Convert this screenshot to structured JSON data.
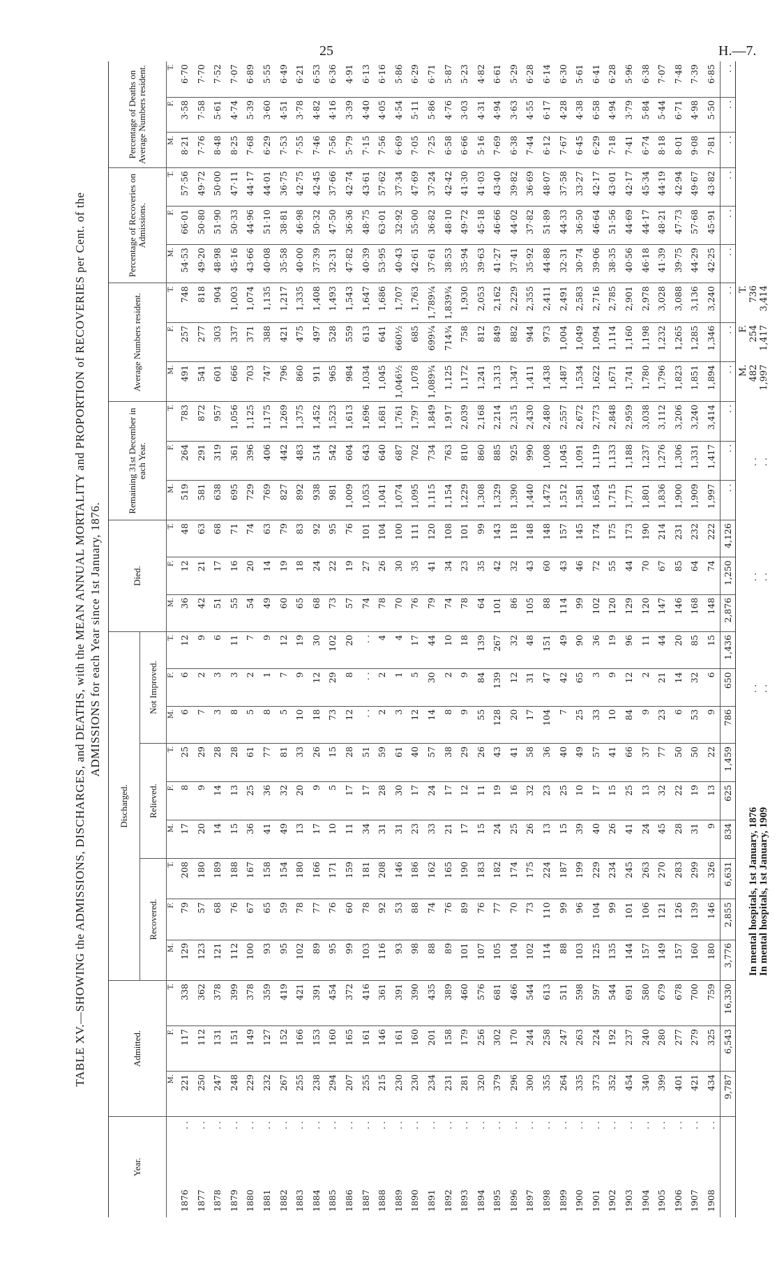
{
  "page": {
    "number": "25",
    "reference": "H.—7."
  },
  "title": {
    "line1": "TABLE XV.—SHOWING the ADMISSIONS, DISCHARGES, and DEATHS, with the MEAN ANNUAL MORTALITY and PROPORTION of RECOVERIES per Cent. of the",
    "line2": "ADMISSIONS for each Year since 1st January, 1876."
  },
  "headers": {
    "year": "Year.",
    "admitted": "Admitted.",
    "discharged": "Discharged.",
    "recovered": "Recovered.",
    "relieved": "Relieved.",
    "not_improved": "Not Improved.",
    "died": "Died.",
    "remaining": "Remaining 31st December in each Year.",
    "average": "Average Numbers resident.",
    "pct_recoveries": "Percentage of Recoveries on Admissions.",
    "pct_deaths": "Percentage of Deaths on Average Numbers resident.",
    "sub": [
      "M.",
      "F.",
      "T."
    ],
    "leader": ". ."
  },
  "table": {
    "rows": [
      [
        "1876",
        "221",
        "117",
        "338",
        "129",
        "79",
        "208",
        "17",
        "8",
        "25",
        "6",
        "6",
        "12",
        "36",
        "12",
        "48",
        "519",
        "264",
        "783",
        "491",
        "257",
        "748",
        "54·53",
        "66·01",
        "57·56",
        "8·21",
        "3·58",
        "6·70"
      ],
      [
        "1877",
        "250",
        "112",
        "362",
        "123",
        "57",
        "180",
        "20",
        "9",
        "29",
        "7",
        "2",
        "9",
        "42",
        "21",
        "63",
        "581",
        "291",
        "872",
        "541",
        "277",
        "818",
        "49·20",
        "50·80",
        "49·72",
        "7·76",
        "7·58",
        "7·70"
      ],
      [
        "1878",
        "247",
        "131",
        "378",
        "121",
        "68",
        "189",
        "14",
        "14",
        "28",
        "3",
        "3",
        "6",
        "51",
        "17",
        "68",
        "638",
        "319",
        "957",
        "601",
        "303",
        "904",
        "48·98",
        "51·90",
        "50·00",
        "8·48",
        "5·61",
        "7·52"
      ],
      [
        "1879",
        "248",
        "151",
        "399",
        "112",
        "76",
        "188",
        "15",
        "13",
        "28",
        "8",
        "3",
        "11",
        "55",
        "16",
        "71",
        "695",
        "361",
        "1,056",
        "666",
        "337",
        "1,003",
        "45·16",
        "50·33",
        "47·11",
        "8·25",
        "4·74",
        "7·07"
      ],
      [
        "1880",
        "229",
        "149",
        "378",
        "100",
        "67",
        "167",
        "36",
        "25",
        "61",
        "5",
        "2",
        "7",
        "54",
        "20",
        "74",
        "729",
        "396",
        "1,125",
        "703",
        "371",
        "1,074",
        "43·66",
        "44·96",
        "44·17",
        "7·68",
        "5·39",
        "6·89"
      ],
      [
        "1881",
        "232",
        "127",
        "359",
        "93",
        "65",
        "158",
        "41",
        "36",
        "77",
        "8",
        "1",
        "9",
        "49",
        "14",
        "63",
        "769",
        "406",
        "1,175",
        "747",
        "388",
        "1,135",
        "40·08",
        "51·10",
        "44·01",
        "6·29",
        "3·60",
        "5·55"
      ],
      [
        "1882",
        "267",
        "152",
        "419",
        "95",
        "59",
        "154",
        "49",
        "32",
        "81",
        "5",
        "7",
        "12",
        "60",
        "19",
        "79",
        "827",
        "442",
        "1,269",
        "796",
        "421",
        "1,217",
        "35·58",
        "38·81",
        "36·75",
        "7·53",
        "4·51",
        "6·49"
      ],
      [
        "1883",
        "255",
        "166",
        "421",
        "102",
        "78",
        "180",
        "13",
        "20",
        "33",
        "10",
        "9",
        "19",
        "65",
        "18",
        "83",
        "892",
        "483",
        "1,375",
        "860",
        "475",
        "1,335",
        "40·00",
        "46·98",
        "42·75",
        "7·55",
        "3·78",
        "6·21"
      ],
      [
        "1884",
        "238",
        "153",
        "391",
        "89",
        "77",
        "166",
        "17",
        "9",
        "26",
        "18",
        "12",
        "30",
        "68",
        "24",
        "92",
        "938",
        "514",
        "1,452",
        "911",
        "497",
        "1,408",
        "37·39",
        "50·32",
        "42·45",
        "7·46",
        "4·82",
        "6·53"
      ],
      [
        "1885",
        "294",
        "160",
        "454",
        "95",
        "76",
        "171",
        "10",
        "5",
        "15",
        "73",
        "29",
        "102",
        "73",
        "22",
        "95",
        "981",
        "542",
        "1,523",
        "965",
        "528",
        "1,493",
        "32·31",
        "47·50",
        "37·66",
        "7·56",
        "4·16",
        "6·36"
      ],
      [
        "1886",
        "207",
        "165",
        "372",
        "99",
        "60",
        "159",
        "11",
        "17",
        "28",
        "12",
        "8",
        "20",
        "57",
        "19",
        "76",
        "1,009",
        "604",
        "1,613",
        "984",
        "559",
        "1,543",
        "47·82",
        "36·36",
        "42·74",
        "5·79",
        "3·39",
        "4·91"
      ],
      [
        "1887",
        "255",
        "161",
        "416",
        "103",
        "78",
        "181",
        "34",
        "17",
        "51",
        ". .",
        ". .",
        ". .",
        "74",
        "27",
        "101",
        "1,053",
        "643",
        "1,696",
        "1,034",
        "613",
        "1,647",
        "40·39",
        "48·75",
        "43·61",
        "7·15",
        "4·40",
        "6·13"
      ],
      [
        "1888",
        "215",
        "146",
        "361",
        "116",
        "92",
        "208",
        "31",
        "28",
        "59",
        "2",
        "2",
        "4",
        "78",
        "26",
        "104",
        "1,041",
        "640",
        "1,681",
        "1,045",
        "641",
        "1,686",
        "53·95",
        "63·01",
        "57·62",
        "7·56",
        "4·05",
        "6·16"
      ],
      [
        "1889",
        "230",
        "161",
        "391",
        "93",
        "53",
        "146",
        "31",
        "30",
        "61",
        "3",
        "1",
        "4",
        "70",
        "30",
        "100",
        "1,074",
        "687",
        "1,761",
        "1,046½",
        "660½",
        "1,707",
        "40·43",
        "32·92",
        "37·34",
        "6·69",
        "4·54",
        "5·86"
      ],
      [
        "1890",
        "230",
        "160",
        "390",
        "98",
        "88",
        "186",
        "23",
        "17",
        "40",
        "12",
        "5",
        "17",
        "76",
        "35",
        "111",
        "1,095",
        "702",
        "1,797",
        "1,078",
        "685",
        "1,763",
        "42·61",
        "55·00",
        "47·69",
        "7·05",
        "5·11",
        "6·29"
      ],
      [
        "1891",
        "234",
        "201",
        "435",
        "88",
        "74",
        "162",
        "33",
        "24",
        "57",
        "14",
        "30",
        "44",
        "79",
        "41",
        "120",
        "1,115",
        "734",
        "1,849",
        "1,089¾",
        "699¼",
        "1,789¼",
        "37·61",
        "36·82",
        "37·24",
        "7·25",
        "5·86",
        "6·71"
      ],
      [
        "1892",
        "231",
        "158",
        "389",
        "89",
        "76",
        "165",
        "21",
        "17",
        "38",
        "8",
        "2",
        "10",
        "74",
        "34",
        "108",
        "1,154",
        "763",
        "1,917",
        "1,125",
        "714¾",
        "1,839¾",
        "38·53",
        "48·10",
        "42·42",
        "6·58",
        "4·76",
        "5·87"
      ],
      [
        "1893",
        "281",
        "179",
        "460",
        "101",
        "89",
        "190",
        "17",
        "12",
        "29",
        "9",
        "9",
        "18",
        "78",
        "23",
        "101",
        "1,229",
        "810",
        "2,039",
        "1,172",
        "758",
        "1,930",
        "35·94",
        "49·72",
        "41·30",
        "6·66",
        "3·03",
        "5·23"
      ],
      [
        "1894",
        "320",
        "256",
        "576",
        "107",
        "76",
        "183",
        "15",
        "11",
        "26",
        "55",
        "84",
        "139",
        "64",
        "35",
        "99",
        "1,308",
        "860",
        "2,168",
        "1,241",
        "812",
        "2,053",
        "39·63",
        "45·18",
        "41·03",
        "5·16",
        "4·31",
        "4·82"
      ],
      [
        "1895",
        "379",
        "302",
        "681",
        "105",
        "77",
        "182",
        "24",
        "19",
        "43",
        "128",
        "139",
        "267",
        "101",
        "42",
        "143",
        "1,329",
        "885",
        "2,214",
        "1,313",
        "849",
        "2,162",
        "41·27",
        "46·66",
        "43·40",
        "7·69",
        "4·94",
        "6·61"
      ],
      [
        "1896",
        "296",
        "170",
        "466",
        "104",
        "70",
        "174",
        "25",
        "16",
        "41",
        "20",
        "12",
        "32",
        "86",
        "32",
        "118",
        "1,390",
        "925",
        "2,315",
        "1,347",
        "882",
        "2,229",
        "37·41",
        "44·02",
        "39·82",
        "6·38",
        "3·63",
        "5·29"
      ],
      [
        "1897",
        "300",
        "244",
        "544",
        "102",
        "73",
        "175",
        "26",
        "32",
        "58",
        "17",
        "31",
        "48",
        "105",
        "43",
        "148",
        "1,440",
        "990",
        "2,430",
        "1,411",
        "944",
        "2,355",
        "35·92",
        "37·82",
        "36·69",
        "7·44",
        "4·55",
        "6·28"
      ],
      [
        "1898",
        "355",
        "258",
        "613",
        "114",
        "110",
        "224",
        "13",
        "23",
        "36",
        "104",
        "47",
        "151",
        "88",
        "60",
        "148",
        "1,472",
        "1,008",
        "2,480",
        "1,438",
        "973",
        "2,411",
        "44·88",
        "51·89",
        "48·07",
        "6·12",
        "6·17",
        "6·14"
      ],
      [
        "1899",
        "264",
        "247",
        "511",
        "88",
        "99",
        "187",
        "15",
        "25",
        "40",
        "7",
        "42",
        "49",
        "114",
        "43",
        "157",
        "1,512",
        "1,045",
        "2,557",
        "1,487",
        "1,004",
        "2,491",
        "32·31",
        "44·33",
        "37·58",
        "7·67",
        "4·28",
        "6·30"
      ],
      [
        "1900",
        "335",
        "263",
        "598",
        "103",
        "96",
        "199",
        "39",
        "10",
        "49",
        "25",
        "65",
        "90",
        "99",
        "46",
        "145",
        "1,581",
        "1,091",
        "2,672",
        "1,534",
        "1,049",
        "2,583",
        "30·74",
        "36·50",
        "33·27",
        "6·45",
        "4·38",
        "5·61"
      ],
      [
        "1901",
        "373",
        "224",
        "597",
        "125",
        "104",
        "229",
        "40",
        "17",
        "57",
        "33",
        "3",
        "36",
        "102",
        "72",
        "174",
        "1,654",
        "1,119",
        "2,773",
        "1,622",
        "1,094",
        "2,716",
        "39·06",
        "46·64",
        "42·17",
        "6·29",
        "6·58",
        "6·41"
      ],
      [
        "1902",
        "352",
        "192",
        "544",
        "135",
        "99",
        "234",
        "26",
        "15",
        "41",
        "10",
        "9",
        "19",
        "120",
        "55",
        "175",
        "1,715",
        "1,133",
        "2,848",
        "1,671",
        "1,114",
        "2,785",
        "38·35",
        "51·56",
        "43·01",
        "7·18",
        "4·94",
        "6·28"
      ],
      [
        "1903",
        "454",
        "237",
        "691",
        "144",
        "101",
        "245",
        "41",
        "25",
        "66",
        "84",
        "12",
        "96",
        "129",
        "44",
        "173",
        "1,771",
        "1,188",
        "2,959",
        "1,741",
        "1,160",
        "2,901",
        "40·56",
        "44·69",
        "42·17",
        "7·41",
        "3·79",
        "5·96"
      ],
      [
        "1904",
        "340",
        "240",
        "580",
        "157",
        "106",
        "263",
        "24",
        "13",
        "37",
        "9",
        "2",
        "11",
        "120",
        "70",
        "190",
        "1,801",
        "1,237",
        "3,038",
        "1,780",
        "1,198",
        "2,978",
        "46·18",
        "44·17",
        "45·34",
        "6·74",
        "5·84",
        "6·38"
      ],
      [
        "1905",
        "399",
        "280",
        "679",
        "149",
        "121",
        "270",
        "45",
        "32",
        "77",
        "23",
        "21",
        "44",
        "147",
        "67",
        "214",
        "1,836",
        "1,276",
        "3,112",
        "1,796",
        "1,232",
        "3,028",
        "41·39",
        "48·21",
        "44·19",
        "8·18",
        "5·44",
        "7·07"
      ],
      [
        "1906",
        "401",
        "277",
        "678",
        "157",
        "126",
        "283",
        "28",
        "22",
        "50",
        "6",
        "14",
        "20",
        "146",
        "85",
        "231",
        "1,900",
        "1,306",
        "3,206",
        "1,823",
        "1,265",
        "3,088",
        "39·75",
        "47·73",
        "42·94",
        "8·01",
        "6·71",
        "7·48"
      ],
      [
        "1907",
        "421",
        "279",
        "700",
        "160",
        "139",
        "299",
        "31",
        "19",
        "50",
        "53",
        "32",
        "85",
        "168",
        "64",
        "232",
        "1,909",
        "1,331",
        "3,240",
        "1,851",
        "1,285",
        "3,136",
        "44·29",
        "57·68",
        "49·67",
        "9·08",
        "4·98",
        "7·39"
      ],
      [
        "1908",
        "434",
        "325",
        "759",
        "180",
        "146",
        "326",
        "9",
        "13",
        "22",
        "9",
        "6",
        "15",
        "148",
        "74",
        "222",
        "1,997",
        "1,417",
        "3,414",
        "1,894",
        "1,346",
        "3,240",
        "42·25",
        "45·91",
        "43·82",
        "7·81",
        "5·50",
        "6·85"
      ]
    ],
    "totals": [
      "",
      "9,787",
      "6,543",
      "16,330",
      "3,776",
      "2,855",
      "6,631",
      "834",
      "625",
      "1,459",
      "786",
      "650",
      "1,436",
      "2,876",
      "1,250",
      "4,126",
      ". .",
      ". .",
      ". .",
      ". .",
      ". .",
      ". .",
      ". .",
      ". .",
      ". .",
      ". .",
      ". .",
      ". ."
    ]
  },
  "footer": {
    "labels": [
      "M.",
      "F.",
      "T."
    ],
    "lines": [
      {
        "text": "In mental hospitals, 1st January, 1876",
        "values": [
          "482",
          "254",
          "736"
        ]
      },
      {
        "text": "In mental hospitals, 1st January, 1909",
        "values": [
          "1,997",
          "1,417",
          "3,414"
        ]
      }
    ],
    "leader": ". ."
  }
}
